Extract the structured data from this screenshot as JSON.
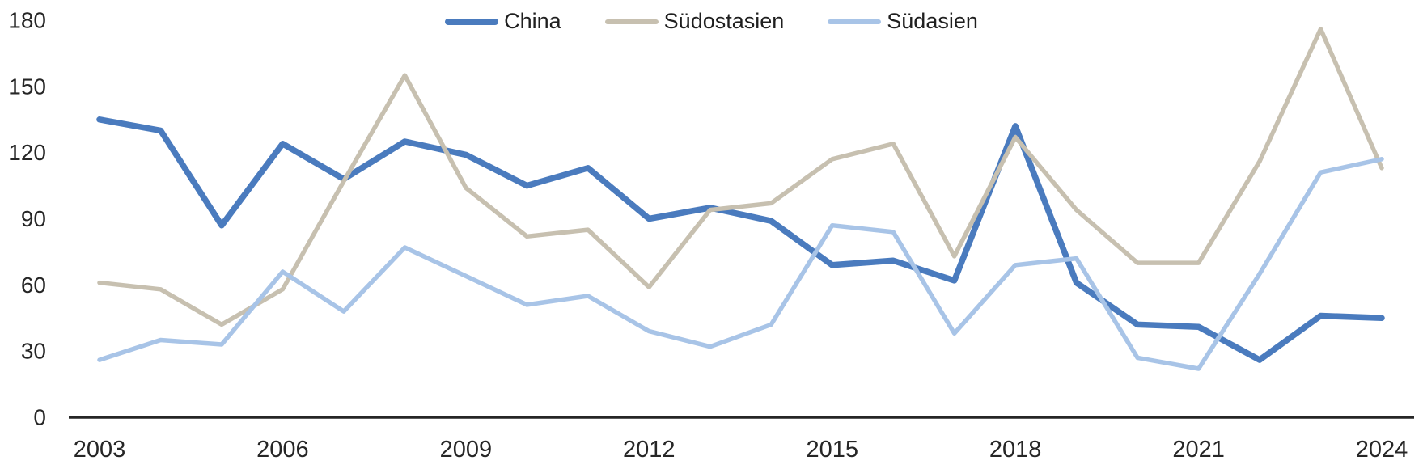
{
  "chart_data": {
    "type": "line",
    "title": "",
    "xlabel": "",
    "ylabel": "",
    "x": [
      2003,
      2004,
      2005,
      2006,
      2007,
      2008,
      2009,
      2010,
      2011,
      2012,
      2013,
      2014,
      2015,
      2016,
      2017,
      2018,
      2019,
      2020,
      2021,
      2022,
      2023,
      2024
    ],
    "series": [
      {
        "name": "China",
        "color": "#4a7bbe",
        "values": [
          135,
          130,
          87,
          124,
          108,
          125,
          119,
          105,
          113,
          90,
          95,
          89,
          69,
          71,
          62,
          132,
          61,
          42,
          41,
          26,
          46,
          45
        ]
      },
      {
        "name": "Südostasien",
        "color": "#c7c0b0",
        "values": [
          61,
          58,
          42,
          58,
          107,
          155,
          104,
          82,
          85,
          59,
          94,
          97,
          117,
          124,
          73,
          127,
          94,
          70,
          70,
          116,
          176,
          113
        ]
      },
      {
        "name": "Südasien",
        "color": "#a8c4e7",
        "values": [
          26,
          35,
          33,
          66,
          48,
          77,
          64,
          51,
          55,
          39,
          32,
          42,
          87,
          84,
          38,
          69,
          72,
          27,
          22,
          65,
          111,
          117
        ]
      }
    ],
    "ylim": [
      0,
      180
    ],
    "yticks": [
      0,
      30,
      60,
      90,
      120,
      150,
      180
    ],
    "xticks": [
      2003,
      2006,
      2009,
      2012,
      2015,
      2018,
      2021,
      2024
    ],
    "legend_position": "top-center",
    "grid": false,
    "background_color": "#ffffff",
    "axis_color": "#262626",
    "tick_text_color": "#262626"
  }
}
